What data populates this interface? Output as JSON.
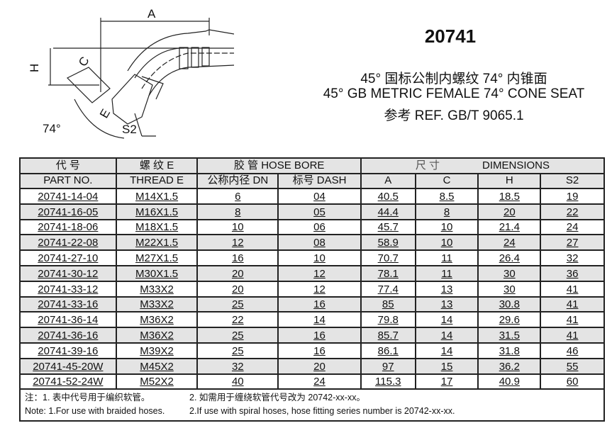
{
  "drawing": {
    "labels": {
      "a": "A",
      "h": "H",
      "c": "C",
      "e": "E",
      "angle": "74°",
      "s2": "S2"
    }
  },
  "header": {
    "title": "20741",
    "line1": "45° 国标公制内螺纹 74° 内锥面",
    "line2": "45°  GB METRIC FEMALE 74° CONE SEAT",
    "line3": "参考 REF. GB/T 9065.1"
  },
  "table": {
    "h1": {
      "part_cn": "代  号",
      "thread_cn": "螺  纹 E",
      "hose": "胶  管 HOSE BORE",
      "dim_cn": "尺  寸",
      "dim_en": "DIMENSIONS"
    },
    "h2": {
      "part": "PART NO.",
      "thread": "THREAD  E",
      "dn": "公称内径 DN",
      "dash": "标号 DASH",
      "a": "A",
      "c": "C",
      "h": "H",
      "s2": "S2"
    },
    "rows": [
      [
        "20741-14-04",
        "M14X1.5",
        "6",
        "04",
        "40.5",
        "8.5",
        "18.5",
        "19"
      ],
      [
        "20741-16-05",
        "M16X1.5",
        "8",
        "05",
        "44.4",
        "8",
        "20",
        "22"
      ],
      [
        "20741-18-06",
        "M18X1.5",
        "10",
        "06",
        "45.7",
        "10",
        "21.4",
        "24"
      ],
      [
        "20741-22-08",
        "M22X1.5",
        "12",
        "08",
        "58.9",
        "10",
        "24",
        "27"
      ],
      [
        "20741-27-10",
        "M27X1.5",
        "16",
        "10",
        "70.7",
        "11",
        "26.4",
        "32"
      ],
      [
        "20741-30-12",
        "M30X1.5",
        "20",
        "12",
        "78.1",
        "11",
        "30",
        "36"
      ],
      [
        "20741-33-12",
        "M33X2",
        "20",
        "12",
        "77.4",
        "13",
        "30",
        "41"
      ],
      [
        "20741-33-16",
        "M33X2",
        "25",
        "16",
        "85",
        "13",
        "30.8",
        "41"
      ],
      [
        "20741-36-14",
        "M36X2",
        "22",
        "14",
        "79.8",
        "14",
        "29.6",
        "41"
      ],
      [
        "20741-36-16",
        "M36X2",
        "25",
        "16",
        "85.7",
        "14",
        "31.5",
        "41"
      ],
      [
        "20741-39-16",
        "M39X2",
        "25",
        "16",
        "86.1",
        "14",
        "31.8",
        "46"
      ],
      [
        "20741-45-20W",
        "M45X2",
        "32",
        "20",
        "97",
        "15",
        "36.2",
        "55"
      ],
      [
        "20741-52-24W",
        "M52X2",
        "40",
        "24",
        "115.3",
        "17",
        "40.9",
        "60"
      ]
    ]
  },
  "notes": {
    "cn1": "注：1. 表中代号用于编织软管。",
    "cn2": "2. 如需用于缠绕软管代号改为 20742-xx-xx。",
    "en1": "Note: 1.For use with braided hoses.",
    "en2": "2.If use with spiral hoses, hose fitting series number is 20742-xx-xx."
  }
}
